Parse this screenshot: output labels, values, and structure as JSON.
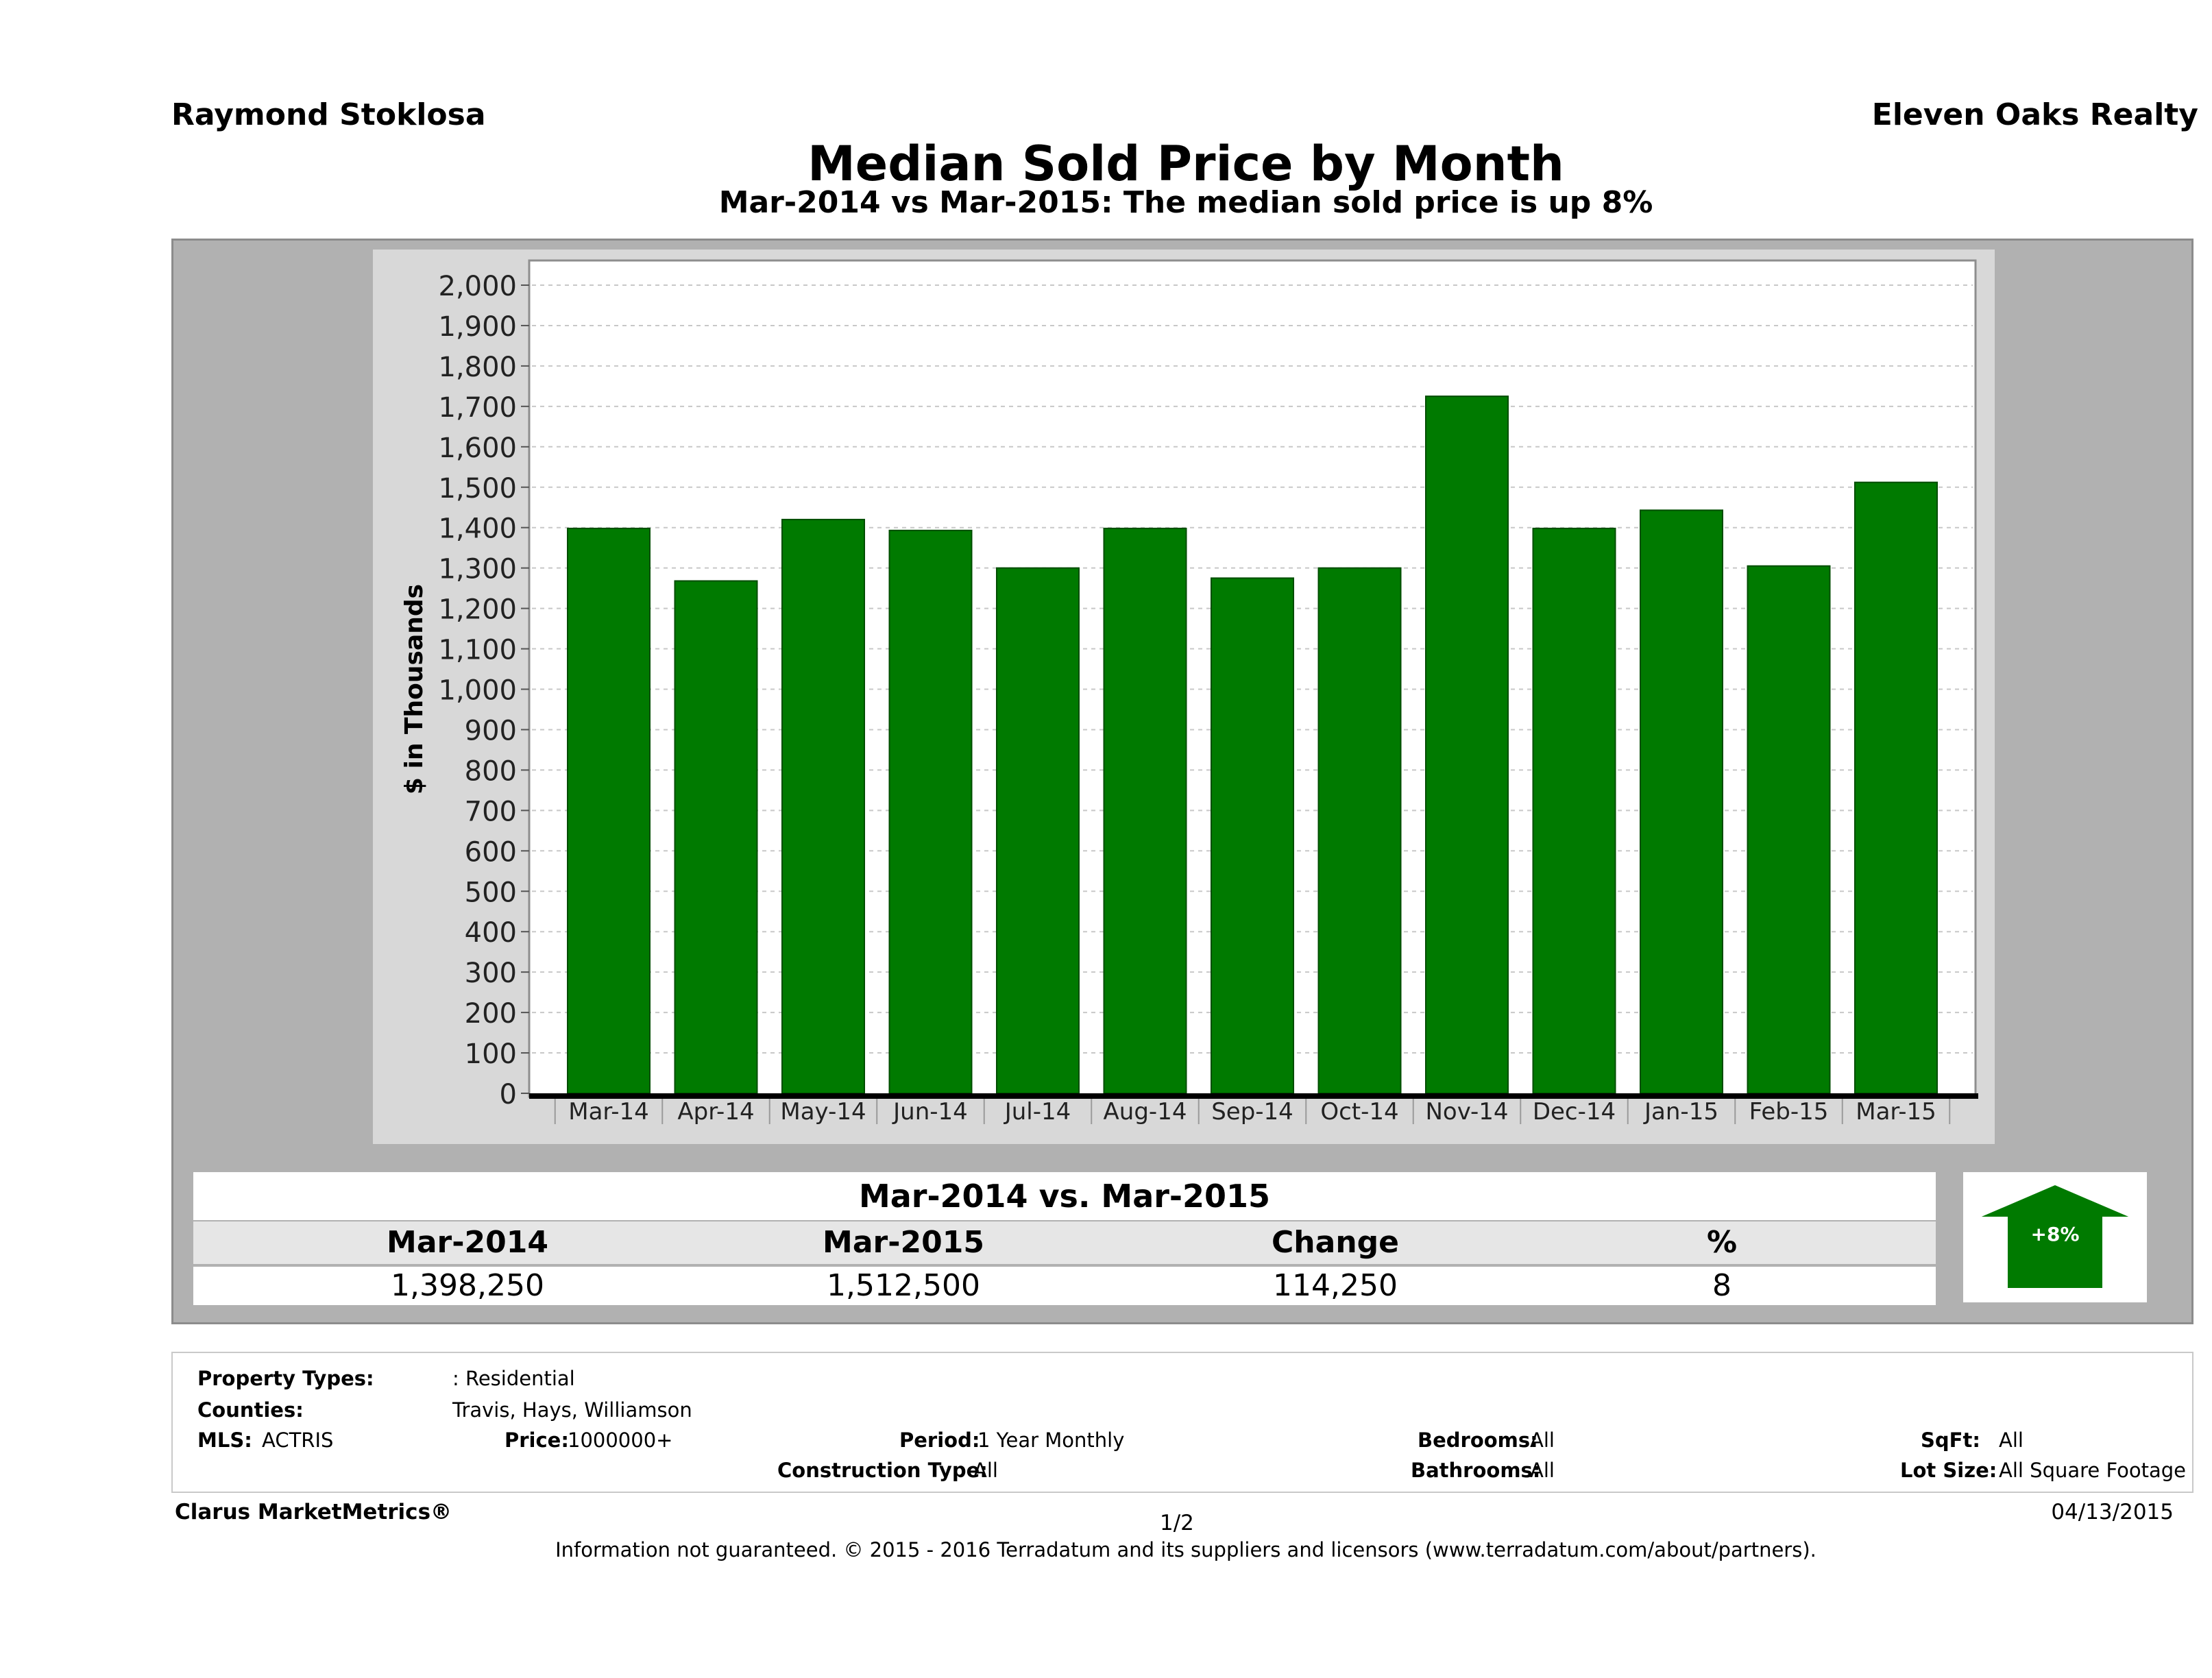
{
  "header": {
    "agent": "Raymond Stoklosa",
    "company": "Eleven Oaks Realty",
    "title": "Median Sold Price by Month",
    "subtitle": "Mar-2014 vs Mar-2015: The median sold price is up 8%"
  },
  "chart_data": {
    "type": "bar",
    "categories": [
      "Mar-14",
      "Apr-14",
      "May-14",
      "Jun-14",
      "Jul-14",
      "Aug-14",
      "Sep-14",
      "Oct-14",
      "Nov-14",
      "Dec-14",
      "Jan-15",
      "Feb-15",
      "Mar-15"
    ],
    "values": [
      1398,
      1268,
      1420,
      1393,
      1300,
      1398,
      1275,
      1300,
      1725,
      1398,
      1443,
      1305,
      1512
    ],
    "ylabel": "$ in Thousands",
    "xlabel": "",
    "ylim": [
      0,
      2000
    ],
    "yticks": [
      0,
      100,
      200,
      300,
      400,
      500,
      600,
      700,
      800,
      900,
      1000,
      1100,
      1200,
      1300,
      1400,
      1500,
      1600,
      1700,
      1800,
      1900,
      2000
    ],
    "ytick_labels": [
      "0",
      "100",
      "200",
      "300",
      "400",
      "500",
      "600",
      "700",
      "800",
      "900",
      "1,000",
      "1,100",
      "1,200",
      "1,300",
      "1,400",
      "1,500",
      "1,600",
      "1,700",
      "1,800",
      "1,900",
      "2,000"
    ],
    "grid": true,
    "bar_color": "#007a00"
  },
  "summary": {
    "title": "Mar-2014 vs. Mar-2015",
    "headers": [
      "Mar-2014",
      "Mar-2015",
      "Change",
      "%"
    ],
    "values": [
      "1,398,250",
      "1,512,500",
      "114,250",
      "8"
    ],
    "badge": "+8%",
    "badge_color": "#007a00"
  },
  "criteria": {
    "property_types_label": "Property Types:",
    "property_types": ": Residential",
    "counties_label": "Counties:",
    "counties": "Travis, Hays, Williamson",
    "mls_label": "MLS:",
    "mls": "ACTRIS",
    "price_label": "Price:",
    "price": "1000000+",
    "period_label": "Period:",
    "period": "1 Year Monthly",
    "construction_label": "Construction Type:",
    "construction": "All",
    "bedrooms_label": "Bedrooms:",
    "bedrooms": "All",
    "bathrooms_label": "Bathrooms:",
    "bathrooms": "All",
    "sqft_label": "SqFt:",
    "sqft": "All",
    "lotsize_label": "Lot Size:",
    "lotsize": "All Square Footage"
  },
  "footer": {
    "brand": "Clarus MarketMetrics®",
    "page": "1/2",
    "date": "04/13/2015",
    "note": "Information not guaranteed. © 2015 - 2016 Terradatum and its suppliers and licensors (www.terradatum.com/about/partners)."
  }
}
